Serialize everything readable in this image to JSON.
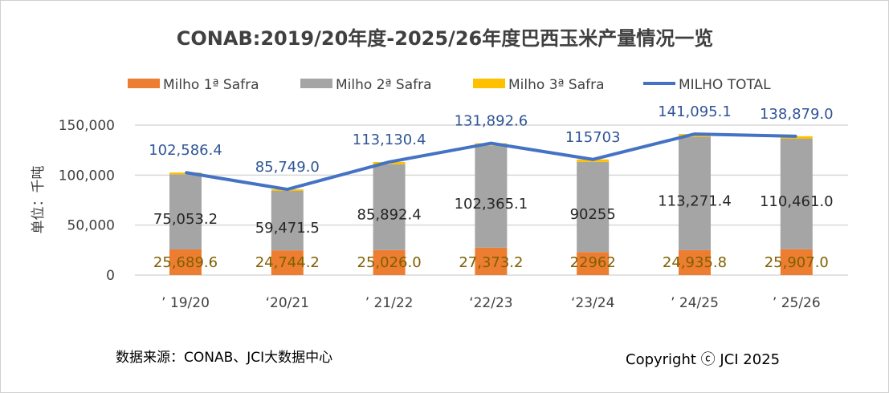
{
  "chart_data": {
    "type": "bar",
    "stacked": true,
    "title": "CONAB:2019/20年度-2025/26年度巴西玉米产量情况一览",
    "ylabel": "单位：千吨",
    "xlabel": "",
    "ylim": [
      0,
      150000
    ],
    "yticks": [
      0,
      50000,
      100000,
      150000
    ],
    "ytick_labels": [
      "0",
      "50,000",
      "100,000",
      "150,000"
    ],
    "grid": true,
    "legend_position": "top",
    "categories": [
      "’  19/20",
      "‘20/21",
      "’  21/22",
      "‘22/23",
      "‘23/24",
      "’  24/25",
      "’  25/26"
    ],
    "series": [
      {
        "name": "Milho 1ª Safra",
        "type": "bar",
        "color": "#ED7D31",
        "values": [
          25689.6,
          24744.2,
          25026.0,
          27373.2,
          22962,
          24935.8,
          25907.0
        ],
        "labels": [
          "25,689.6",
          "24,744.2",
          "25,026.0",
          "27,373.2",
          "22962",
          "24,935.8",
          "25,907.0"
        ]
      },
      {
        "name": "Milho 2ª Safra",
        "type": "bar",
        "color": "#A5A5A5",
        "values": [
          75053.2,
          59471.5,
          85892.4,
          102365.1,
          90255,
          113271.4,
          110461.0
        ],
        "labels": [
          "75,053.2",
          "59,471.5",
          "85,892.4",
          "102,365.1",
          "90255",
          "113,271.4",
          "110,461.0"
        ]
      },
      {
        "name": "Milho 3ª Safra",
        "type": "bar",
        "color": "#FFC000",
        "values": [
          1843.6,
          1533.3,
          2212.0,
          2154.3,
          2486,
          2887.9,
          2511.0
        ]
      },
      {
        "name": "MILHO TOTAL",
        "type": "line",
        "color": "#4472C4",
        "values": [
          102586.4,
          85749.0,
          113130.4,
          131892.6,
          115703,
          141095.1,
          138879.0
        ],
        "labels": [
          "102,586.4",
          "85,749.0",
          "113,130.4",
          "131,892.6",
          "115703",
          "141,095.1",
          "138,879.0"
        ]
      }
    ]
  },
  "footer": {
    "source": "数据来源：CONAB、JCI大数据中心",
    "copyright": "Copyright ⓒ JCI 2025"
  }
}
